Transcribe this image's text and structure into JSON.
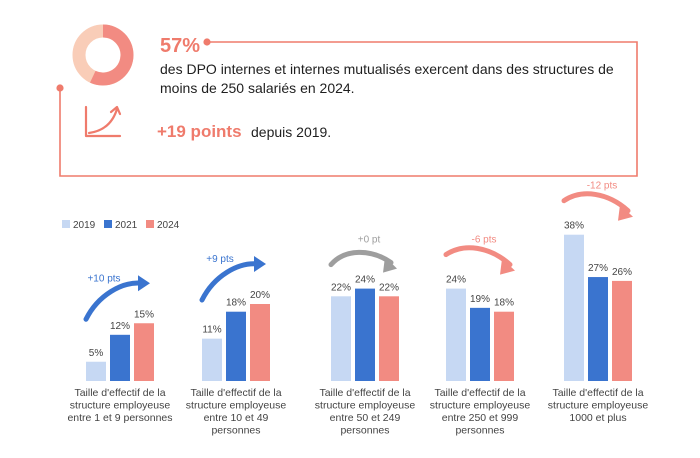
{
  "colors": {
    "accent": "#ef7b6c",
    "donut_light": "#f9cdb8",
    "series_2019": "#c6d8f3",
    "series_2021": "#3a74cf",
    "series_2024": "#f28b82",
    "arrow_up": "#3a74cf",
    "arrow_flat": "#9e9e9e",
    "arrow_down": "#f28b82"
  },
  "summary": {
    "percent": "57%",
    "percent_value": 57,
    "line1": "des DPO internes et internes mutualisés exercent dans des structures de",
    "line2": "moins de 250 salariés en 2024.",
    "growth_value": "+19 points",
    "growth_text": "depuis 2019.",
    "donut_icon": "donut-chart-icon",
    "growth_icon": "growth-curve-icon"
  },
  "chart_data": {
    "type": "bar",
    "categories": [
      "Taille d'effectif de la structure employeuse entre 1 et 9 personnes",
      "Taille d'effectif de la structure employeuse entre 10 et 49 personnes",
      "Taille d'effectif de la structure employeuse entre 50 et 249 personnes",
      "Taille d'effectif de la structure employeuse entre 250 et 999 personnes",
      "Taille d'effectif de la structure employeuse 1000 et plus"
    ],
    "category_lines": [
      [
        "Taille d'effectif de la",
        "structure employeuse",
        "entre 1 et 9 personnes"
      ],
      [
        "Taille d'effectif de la",
        "structure employeuse",
        "entre 10 et 49",
        "personnes"
      ],
      [
        "Taille d'effectif de la",
        "structure employeuse",
        "entre 50 et 249",
        "personnes"
      ],
      [
        "Taille d'effectif de la",
        "structure employeuse",
        "entre 250 et 999",
        "personnes"
      ],
      [
        "Taille d'effectif de la",
        "structure employeuse",
        "1000 et plus"
      ]
    ],
    "series": [
      {
        "name": "2019",
        "values": [
          5,
          11,
          22,
          24,
          38
        ],
        "labels": [
          "5%",
          "11%",
          "22%",
          "24%",
          "38%"
        ]
      },
      {
        "name": "2021",
        "values": [
          12,
          18,
          24,
          19,
          27
        ],
        "labels": [
          "12%",
          "18%",
          "24%",
          "19%",
          "27%"
        ]
      },
      {
        "name": "2024",
        "values": [
          15,
          20,
          22,
          18,
          26
        ],
        "labels": [
          "15%",
          "20%",
          "22%",
          "18%",
          "26%"
        ]
      }
    ],
    "annotations": [
      {
        "text": "+10 pts",
        "direction": "up"
      },
      {
        "text": "+9 pts",
        "direction": "up"
      },
      {
        "text": "+0 pt",
        "direction": "flat"
      },
      {
        "text": "-6 pts",
        "direction": "down"
      },
      {
        "text": "-12 pts",
        "direction": "down"
      }
    ],
    "legend_position": "top-left",
    "ylim": [
      0,
      40
    ],
    "grid": false
  }
}
